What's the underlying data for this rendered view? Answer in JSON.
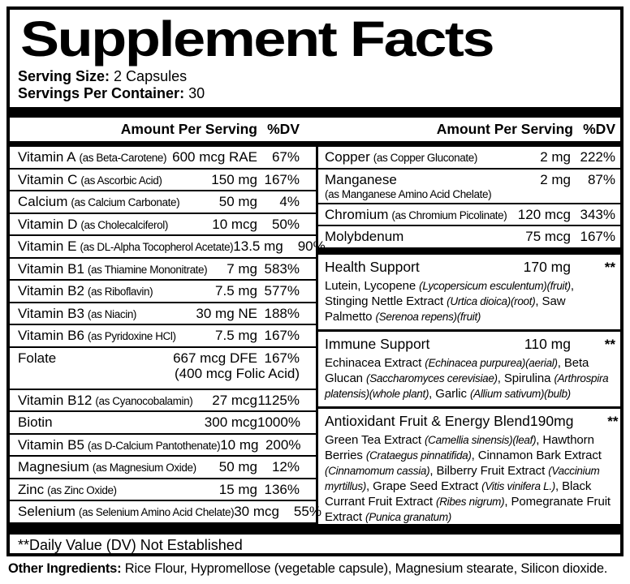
{
  "title": "Supplement Facts",
  "serving": {
    "size_label": "Serving Size:",
    "size_value": " 2 Capsules",
    "container_label": "Servings Per Container:",
    "container_value": " 30"
  },
  "header": {
    "amount": "Amount Per Serving",
    "dv": "%DV"
  },
  "left_rows": [
    {
      "name": "Vitamin A",
      "as": "(as Beta-Carotene)",
      "amount": "600 mcg RAE",
      "dv": "67%"
    },
    {
      "name": "Vitamin C",
      "as": "(as Ascorbic Acid)",
      "amount": "150 mg",
      "dv": "167%"
    },
    {
      "name": "Calcium",
      "as": "(as Calcium Carbonate)",
      "amount": "50 mg",
      "dv": "4%"
    },
    {
      "name": "Vitamin D",
      "as": "(as Cholecalciferol)",
      "amount": "10 mcg",
      "dv": "50%"
    },
    {
      "name": "Vitamin E",
      "as": "(as DL-Alpha Tocopherol Acetate)",
      "amount": "13.5 mg",
      "dv": "90%"
    },
    {
      "name": "Vitamin B1",
      "as": "(as Thiamine Mononitrate)",
      "amount": "7 mg",
      "dv": "583%"
    },
    {
      "name": "Vitamin B2",
      "as": "(as Riboflavin)",
      "amount": "7.5 mg",
      "dv": "577%"
    },
    {
      "name": "Vitamin B3",
      "as": "(as Niacin)",
      "amount": "30 mg NE",
      "dv": "188%"
    },
    {
      "name": "Vitamin B6",
      "as": "(as Pyridoxine HCl)",
      "amount": "7.5 mg",
      "dv": "167%"
    },
    {
      "name": "Folate",
      "as": "",
      "amount": "667 mcg DFE",
      "dv": "167%",
      "sub": "(400 mcg Folic Acid)",
      "sub_style": "amount",
      "tall": true
    },
    {
      "name": "Vitamin B12",
      "as": "(as Cyanocobalamin)",
      "amount": "27 mcg",
      "dv": "1125%"
    },
    {
      "name": "Biotin",
      "as": "",
      "amount": "300 mcg",
      "dv": "1000%"
    },
    {
      "name": "Vitamin B5",
      "as": "(as D-Calcium Pantothenate)",
      "amount": "10 mg",
      "dv": "200%"
    },
    {
      "name": "Magnesium",
      "as": "(as Magnesium Oxide)",
      "amount": "50 mg",
      "dv": "12%"
    },
    {
      "name": "Zinc",
      "as": "(as Zinc Oxide)",
      "amount": "15 mg",
      "dv": "136%"
    },
    {
      "name": "Selenium",
      "as": "(as Selenium Amino Acid Chelate)",
      "amount": "30 mcg",
      "dv": "55%"
    }
  ],
  "right_rows": [
    {
      "name": "Copper",
      "as": "(as Copper Gluconate)",
      "amount": "2 mg",
      "dv": "222%"
    },
    {
      "name": "Manganese",
      "as": "",
      "amount": "2 mg",
      "dv": "87%",
      "sub": "(as Manganese Amino Acid Chelate)",
      "sub_style": "as",
      "tall": true
    },
    {
      "name": "Chromium",
      "as": "(as Chromium Picolinate)",
      "amount": "120 mcg",
      "dv": "343%"
    },
    {
      "name": "Molybdenum",
      "as": "",
      "amount": "75 mcg",
      "dv": "167%"
    }
  ],
  "blends": [
    {
      "name": "Health Support",
      "amount": "170 mg",
      "dv": "**",
      "desc": [
        {
          "t": "Lutein, Lycopene ",
          "i": false
        },
        {
          "t": "(Lycopersicum esculentum)(fruit)",
          "i": true
        },
        {
          "t": ", Stinging Nettle Extract ",
          "i": false
        },
        {
          "t": "(Urtica dioica)(root)",
          "i": true
        },
        {
          "t": ", Saw Palmetto ",
          "i": false
        },
        {
          "t": "(Serenoa repens)(fruit)",
          "i": true
        }
      ]
    },
    {
      "name": "Immune Support",
      "amount": "110 mg",
      "dv": "**",
      "desc": [
        {
          "t": "Echinacea Extract ",
          "i": false
        },
        {
          "t": "(Echinacea purpurea)(aerial)",
          "i": true
        },
        {
          "t": ", Beta Glucan ",
          "i": false
        },
        {
          "t": "(Saccharomyces cerevisiae)",
          "i": true
        },
        {
          "t": ", Spirulina ",
          "i": false
        },
        {
          "t": "(Arthrospira platensis)(whole plant)",
          "i": true
        },
        {
          "t": ", Garlic ",
          "i": false
        },
        {
          "t": "(Allium sativum)(bulb)",
          "i": true
        }
      ]
    },
    {
      "name": "Antioxidant Fruit & Energy Blend",
      "amount": "190mg",
      "dv": "**",
      "desc": [
        {
          "t": "Green Tea Extract ",
          "i": false
        },
        {
          "t": "(Camellia sinensis)(leaf)",
          "i": true
        },
        {
          "t": ", Hawthorn Berries ",
          "i": false
        },
        {
          "t": "(Crataegus pinnatifida)",
          "i": true
        },
        {
          "t": ", Cinnamon Bark Extract ",
          "i": false
        },
        {
          "t": "(Cinnamomum cassia)",
          "i": true
        },
        {
          "t": ", Bilberry Fruit Extract ",
          "i": false
        },
        {
          "t": "(Vaccinium myrtillus)",
          "i": true
        },
        {
          "t": ", Grape Seed Extract ",
          "i": false
        },
        {
          "t": "(Vitis vinifera L.)",
          "i": true
        },
        {
          "t": ", Black Currant Fruit Extract ",
          "i": false
        },
        {
          "t": "(Ribes nigrum)",
          "i": true
        },
        {
          "t": ", Pomegranate Fruit Extract ",
          "i": false
        },
        {
          "t": "(Punica granatum)",
          "i": true
        }
      ]
    }
  ],
  "footnote": "**Daily Value (DV) Not Established",
  "other_ingredients": {
    "label": "Other Ingredients:",
    "value": " Rice Flour, Hypromellose (vegetable capsule), Magnesium stearate, Silicon dioxide."
  }
}
